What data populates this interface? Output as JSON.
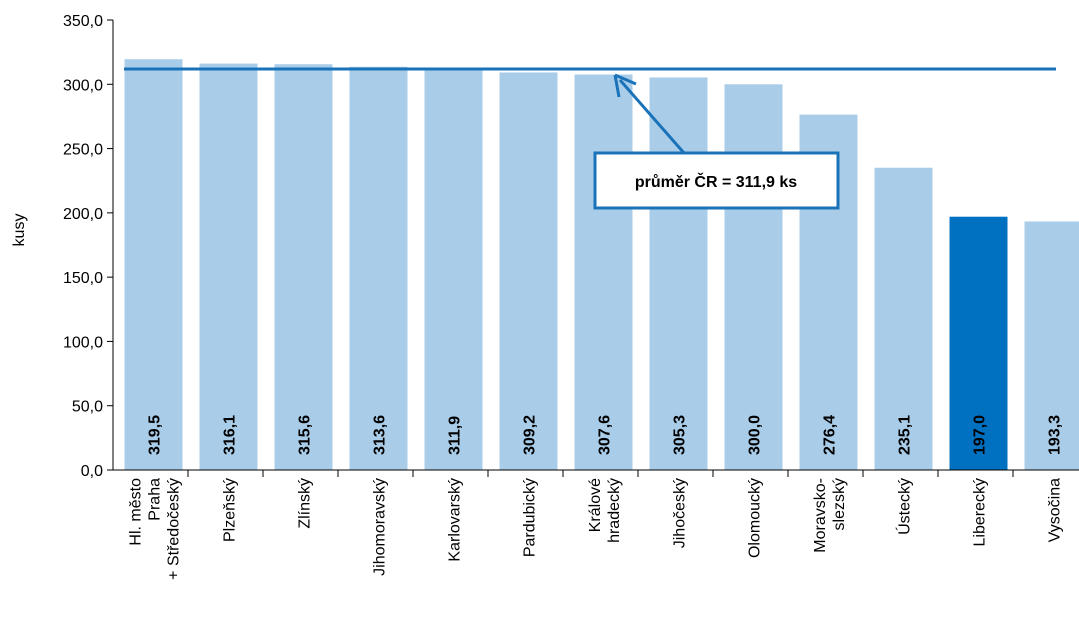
{
  "chart_data": {
    "type": "bar",
    "y_label": "kusy",
    "categories": [
      "Hl. město\nPraha\n+ Středočeský",
      "Plzeňský",
      "Zlínský",
      "Jihomoravský",
      "Karlovarský",
      "Pardubický",
      "Králové\nhradecký",
      "Jihočeský",
      "Olomoucký",
      "Moravsko-\nslezský",
      "Ústecký",
      "Liberecký",
      "Vysočina"
    ],
    "values": [
      319.5,
      316.1,
      315.6,
      313.6,
      311.9,
      309.2,
      307.6,
      305.3,
      300.0,
      276.4,
      235.1,
      197.0,
      193.3
    ],
    "value_labels": [
      "319,5",
      "316,1",
      "315,6",
      "313,6",
      "311,9",
      "309,2",
      "307,6",
      "305,3",
      "300,0",
      "276,4",
      "235,1",
      "197,0",
      "193,3"
    ],
    "colors": [
      "#a9cde9",
      "#a9cde9",
      "#a9cde9",
      "#a9cde9",
      "#a9cde9",
      "#a9cde9",
      "#a9cde9",
      "#a9cde9",
      "#a9cde9",
      "#a9cde9",
      "#a9cde9",
      "#0070c0",
      "#a9cde9"
    ],
    "average": {
      "value": 311.9,
      "label": "průměr ČR = 311,9 ks",
      "color": "#1a72b8"
    },
    "ylim": [
      0,
      350
    ],
    "yticks": [
      {
        "value": 0,
        "label": "0,0"
      },
      {
        "value": 50,
        "label": "50,0"
      },
      {
        "value": 100,
        "label": "100,0"
      },
      {
        "value": 150,
        "label": "150,0"
      },
      {
        "value": 200,
        "label": "200,0"
      },
      {
        "value": 250,
        "label": "250,0"
      },
      {
        "value": 300,
        "label": "300,0"
      },
      {
        "value": 350,
        "label": "350,0"
      }
    ]
  }
}
